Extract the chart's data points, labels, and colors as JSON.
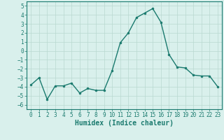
{
  "x": [
    0,
    1,
    2,
    3,
    4,
    5,
    6,
    7,
    8,
    9,
    10,
    11,
    12,
    13,
    14,
    15,
    16,
    17,
    18,
    19,
    20,
    21,
    22,
    23
  ],
  "y": [
    -3.8,
    -3.0,
    -5.4,
    -3.9,
    -3.9,
    -3.6,
    -4.7,
    -4.2,
    -4.4,
    -4.4,
    -2.2,
    0.9,
    2.0,
    3.7,
    4.2,
    4.7,
    3.2,
    -0.4,
    -1.8,
    -1.9,
    -2.7,
    -2.8,
    -2.8,
    -4.0
  ],
  "xlabel": "Humidex (Indice chaleur)",
  "xlim": [
    -0.5,
    23.5
  ],
  "ylim": [
    -6.5,
    5.5
  ],
  "yticks": [
    -6,
    -5,
    -4,
    -3,
    -2,
    -1,
    0,
    1,
    2,
    3,
    4,
    5
  ],
  "xticks": [
    0,
    1,
    2,
    3,
    4,
    5,
    6,
    7,
    8,
    9,
    10,
    11,
    12,
    13,
    14,
    15,
    16,
    17,
    18,
    19,
    20,
    21,
    22,
    23
  ],
  "line_color": "#1a7a6e",
  "marker_size": 2.0,
  "bg_color": "#d9f0ec",
  "grid_color": "#b8d8d0",
  "tick_label_fontsize": 5.5,
  "xlabel_fontsize": 7.0,
  "line_width": 1.0
}
